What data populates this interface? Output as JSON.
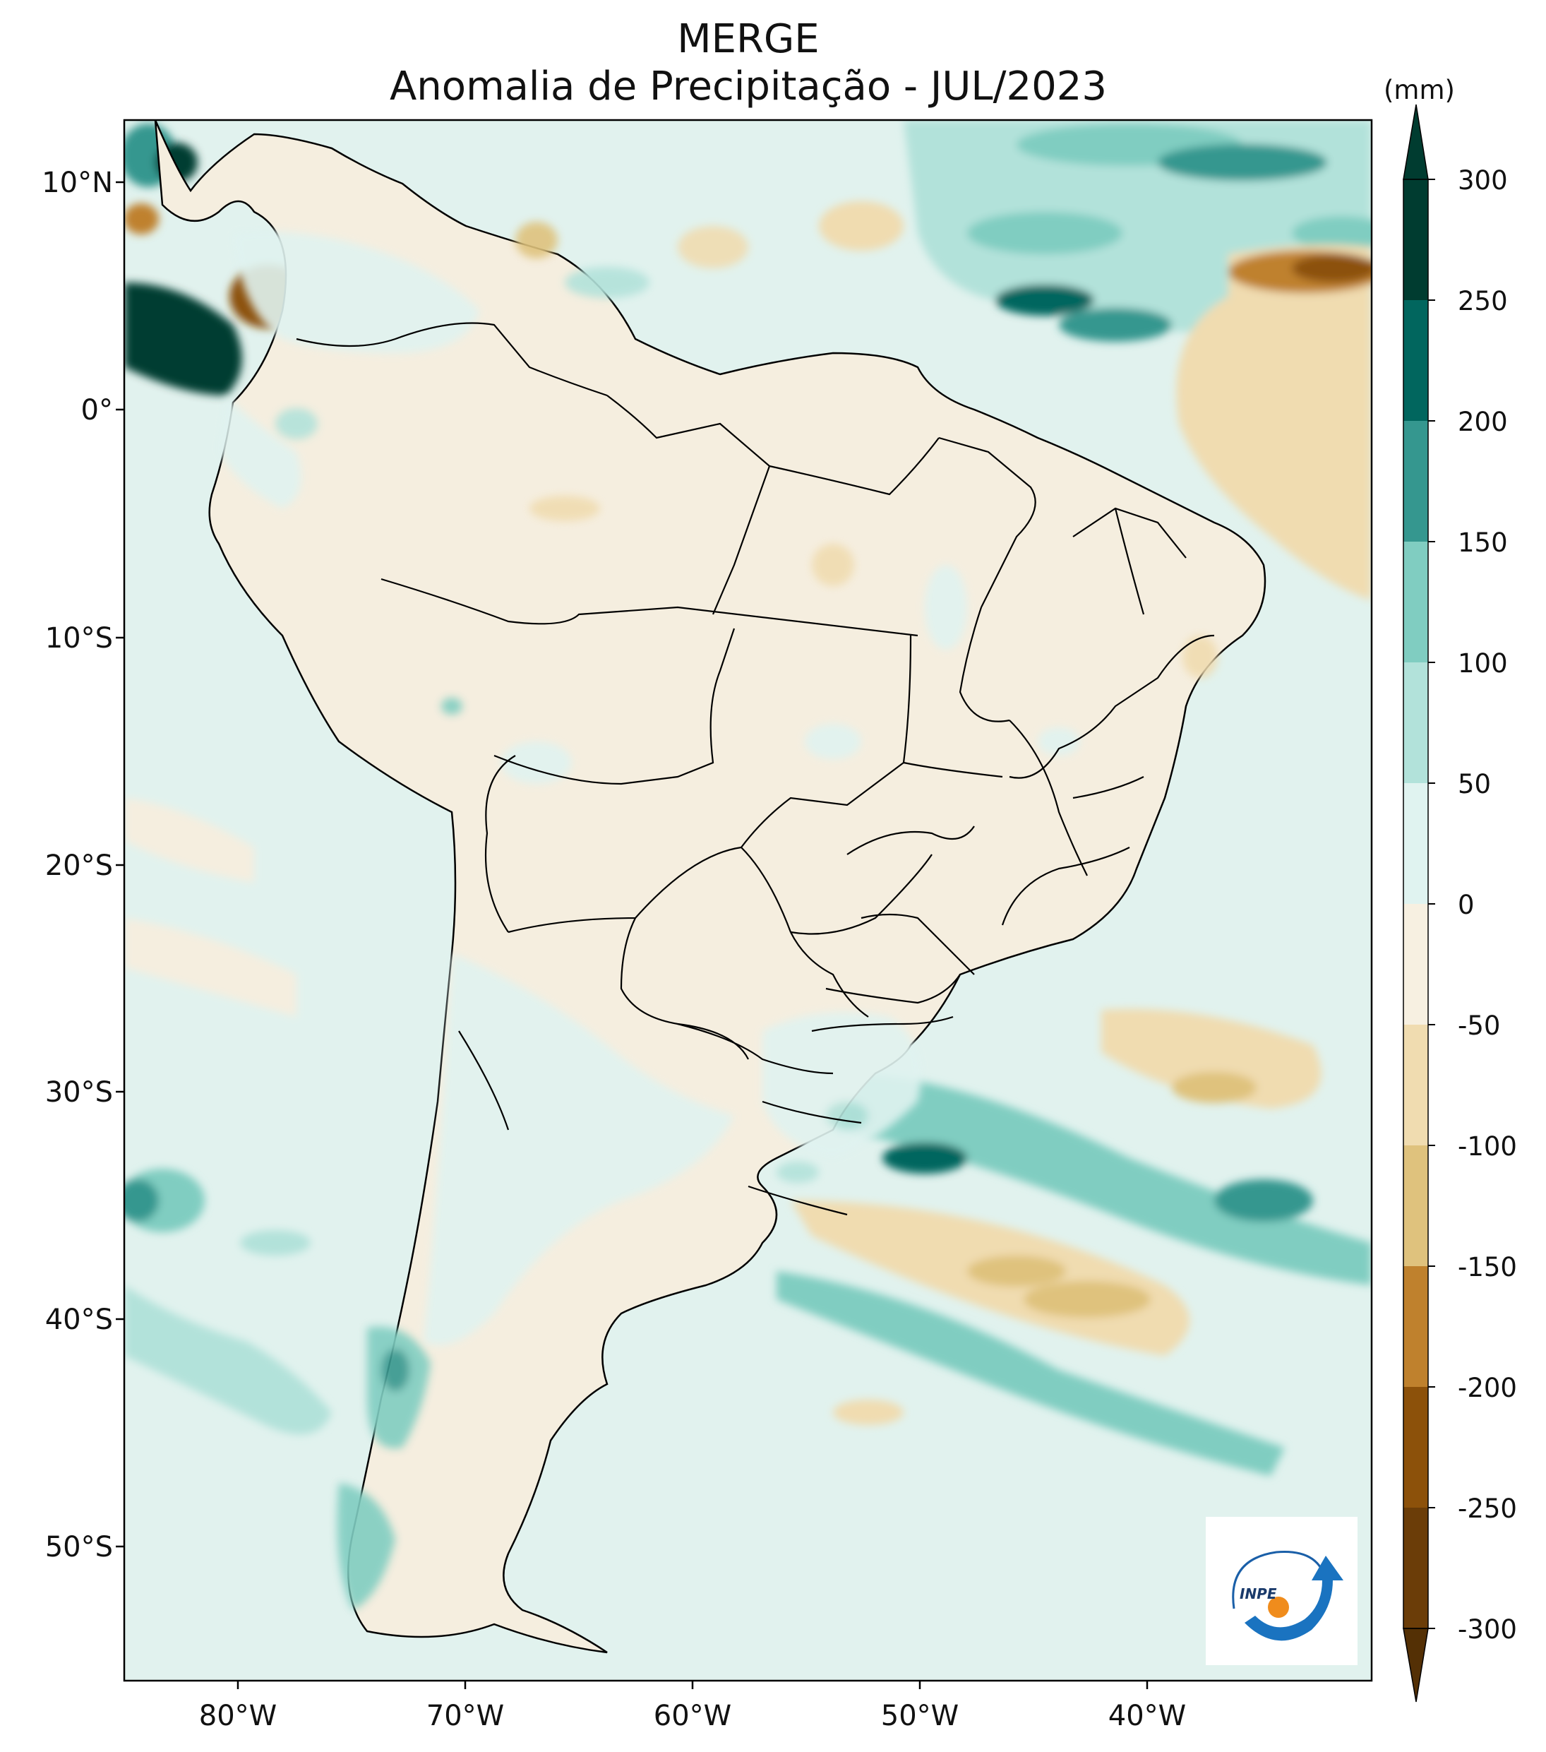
{
  "title": {
    "line1": "MERGE",
    "line2": "Anomalia de Precipitação - JUL/2023"
  },
  "colorbar": {
    "unit": "(mm)",
    "tick_labels": [
      "300",
      "250",
      "200",
      "150",
      "100",
      "50",
      "0",
      "-50",
      "-100",
      "-150",
      "-200",
      "-250",
      "-300"
    ],
    "colors_top_to_bottom": [
      "#003c30",
      "#01665e",
      "#35978f",
      "#80cdc1",
      "#b2e2da",
      "#e0f3f0",
      "#f7f0e1",
      "#f0dcb0",
      "#dfc27d",
      "#bf812d",
      "#8c510a",
      "#6b3d08",
      "#543005"
    ]
  },
  "axes": {
    "lat_labels": [
      "10°N",
      "0°",
      "10°S",
      "20°S",
      "30°S",
      "40°S",
      "50°S"
    ],
    "lon_labels": [
      "80°W",
      "70°W",
      "60°W",
      "50°W",
      "40°W"
    ]
  },
  "logo": {
    "text": "INPE"
  },
  "colors": {
    "land_base": "#f5eedf",
    "ocean_base": "#e1f2ee",
    "border": "#000000"
  }
}
